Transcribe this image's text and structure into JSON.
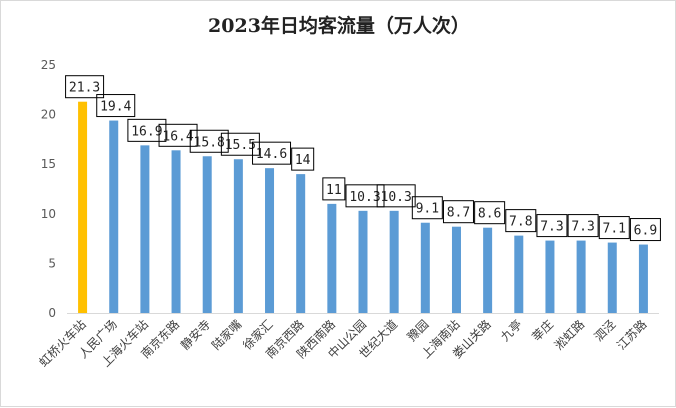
{
  "chart_data": {
    "type": "bar",
    "title": "2023年日均客流量（万人次）",
    "categories": [
      "虹桥火车站",
      "人民广场",
      "上海火车站",
      "南京东路",
      "静安寺",
      "陆家嘴",
      "徐家汇",
      "南京西路",
      "陕西南路",
      "中山公园",
      "世纪大道",
      "豫园",
      "上海南站",
      "娄山关路",
      "九亭",
      "莘庄",
      "淞虹路",
      "泗泾",
      "江苏路"
    ],
    "values": [
      21.3,
      19.4,
      16.9,
      16.4,
      15.8,
      15.5,
      14.6,
      14,
      11,
      10.3,
      10.3,
      9.1,
      8.7,
      8.6,
      7.8,
      7.3,
      7.3,
      7.1,
      6.9
    ],
    "value_labels": [
      "21.3",
      "19.4",
      "16.9",
      "16.4",
      "15.8",
      "15.5",
      "14.6",
      "14",
      "11",
      "10.3",
      "10.3",
      "9.1",
      "8.7",
      "8.6",
      "7.8",
      "7.3",
      "7.3",
      "7.1",
      "6.9"
    ],
    "ylim": [
      0,
      25
    ],
    "yticks": [
      "0",
      "5",
      "10",
      "15",
      "20",
      "25"
    ],
    "xlabel": "",
    "ylabel": "",
    "grid": false,
    "legend": "none",
    "colors": {
      "default": "#5b9bd5",
      "highlight": "#ffc000"
    },
    "highlight_index": 0
  }
}
